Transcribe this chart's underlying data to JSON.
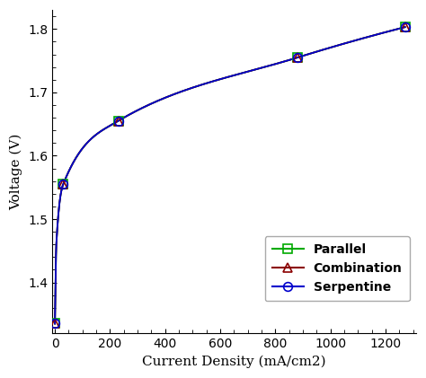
{
  "title": "",
  "xlabel": "Current Density (mA/cm2)",
  "ylabel": "Voltage (V)",
  "xlim": [
    -10,
    1310
  ],
  "ylim": [
    1.32,
    1.83
  ],
  "xticks": [
    0,
    200,
    400,
    600,
    800,
    1000,
    1200
  ],
  "yticks": [
    1.4,
    1.5,
    1.6,
    1.7,
    1.8
  ],
  "series": [
    {
      "label": "Parallel",
      "color": "#00aa00",
      "marker": "s",
      "x": [
        0,
        5,
        30,
        230,
        880,
        1270
      ],
      "y": [
        1.335,
        1.46,
        1.555,
        1.655,
        1.755,
        1.803
      ]
    },
    {
      "label": "Combination",
      "color": "#8b0000",
      "marker": "^",
      "x": [
        0,
        5,
        30,
        230,
        880,
        1270
      ],
      "y": [
        1.335,
        1.46,
        1.555,
        1.655,
        1.755,
        1.803
      ]
    },
    {
      "label": "Serpentine",
      "color": "#0000cc",
      "marker": "o",
      "x": [
        0,
        5,
        30,
        230,
        880,
        1270
      ],
      "y": [
        1.335,
        1.46,
        1.555,
        1.655,
        1.755,
        1.803
      ]
    }
  ],
  "marker_x": [
    0,
    30,
    230,
    880,
    1270
  ],
  "background_color": "#ffffff",
  "figsize": [
    4.74,
    4.21
  ],
  "dpi": 100
}
